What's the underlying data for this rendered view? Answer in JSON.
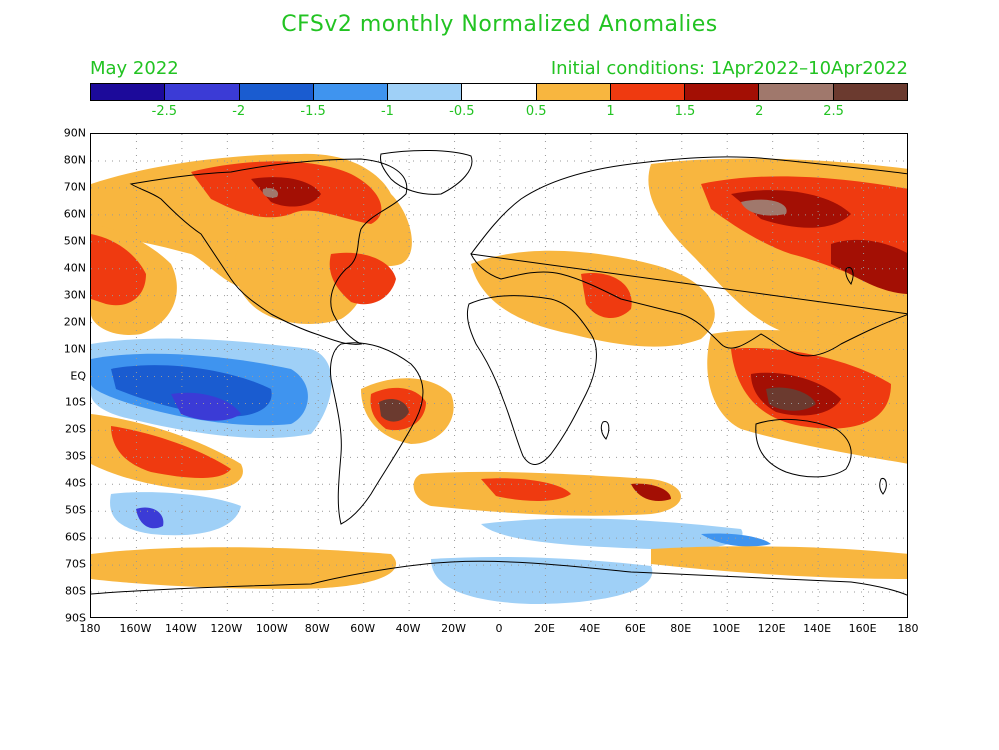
{
  "title": "CFSv2 monthly Normalized Anomalies",
  "month": "May 2022",
  "initial_conditions": "Initial conditions: 1Apr2022–10Apr2022",
  "colorbar": {
    "colors": [
      "#1c0a9a",
      "#3b3bd6",
      "#1a5cd0",
      "#3f94ef",
      "#9fd0f7",
      "#ffffff",
      "#f8b63f",
      "#ef3a10",
      "#a30f04",
      "#a0786c",
      "#6b3a2f"
    ],
    "labels": [
      "-2.5",
      "-2",
      "-1.5",
      "-1",
      "-0.5",
      "0.5",
      "1",
      "1.5",
      "2",
      "2.5"
    ]
  },
  "axes": {
    "lat_labels": [
      "90N",
      "80N",
      "70N",
      "60N",
      "50N",
      "40N",
      "30N",
      "20N",
      "10N",
      "EQ",
      "10S",
      "20S",
      "30S",
      "40S",
      "50S",
      "60S",
      "70S",
      "80S",
      "90S"
    ],
    "lon_labels": [
      "180",
      "160W",
      "140W",
      "120W",
      "100W",
      "80W",
      "60W",
      "40W",
      "20W",
      "0",
      "20E",
      "40E",
      "60E",
      "80E",
      "100E",
      "120E",
      "140E",
      "160E",
      "180"
    ]
  },
  "colors": {
    "text_accent": "#22c322",
    "coastline": "#000000"
  }
}
